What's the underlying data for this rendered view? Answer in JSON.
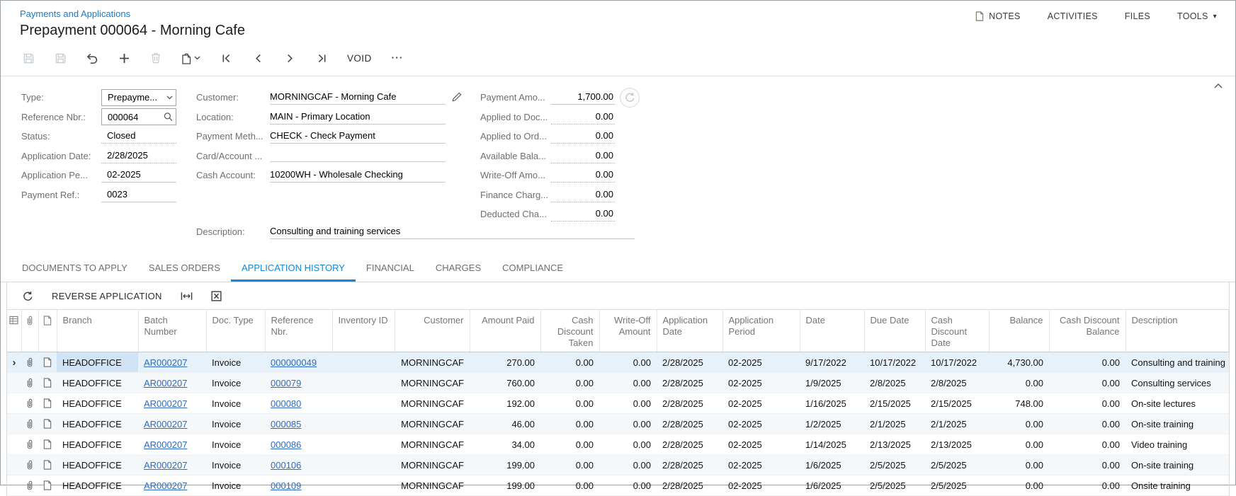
{
  "colors": {
    "accent": "#1487d8",
    "link": "#2d6bc2",
    "breadcrumb": "#1b7ac9",
    "selected_row": "#e7f1fa",
    "selected_cell": "#d0e4f5",
    "stripe": "#f5f8fb"
  },
  "header": {
    "breadcrumb": "Payments and Applications",
    "title": "Prepayment 000064 - Morning Cafe"
  },
  "top_menu": {
    "items": [
      {
        "name": "notes",
        "label": "NOTES",
        "icon": "note"
      },
      {
        "name": "activities",
        "label": "ACTIVITIES"
      },
      {
        "name": "files",
        "label": "FILES"
      },
      {
        "name": "tools",
        "label": "TOOLS",
        "caret": "▾"
      }
    ]
  },
  "toolbar": {
    "buttons": [
      {
        "name": "save-close-button",
        "icon": "floppy",
        "disabled": true
      },
      {
        "name": "save-button",
        "icon": "floppy",
        "disabled": true
      },
      {
        "name": "undo-button",
        "icon": "undo"
      },
      {
        "name": "add-button",
        "icon": "plus"
      },
      {
        "name": "delete-button",
        "icon": "trash",
        "disabled": true
      },
      {
        "name": "copy-paste-button",
        "icon": "copy",
        "caret": true
      },
      {
        "name": "go-first-button",
        "icon": "navfirst"
      },
      {
        "name": "go-previous-button",
        "icon": "navprev"
      },
      {
        "name": "go-next-button",
        "icon": "navnext"
      },
      {
        "name": "go-last-button",
        "icon": "navlast"
      },
      {
        "name": "void-button",
        "label": "VOID"
      },
      {
        "name": "more-actions-button",
        "label": "⋯",
        "more": true
      }
    ]
  },
  "form": {
    "left": [
      {
        "label": "Type:",
        "value": "Prepayme...",
        "control": "combo"
      },
      {
        "label": "Reference Nbr.:",
        "value": "000064",
        "control": "lookup"
      },
      {
        "label": "Status:",
        "value": "Closed",
        "control": "readonly"
      },
      {
        "label": "Application Date:",
        "value": "2/28/2025",
        "control": "readonly"
      },
      {
        "label": "Application Pe...",
        "value": "02-2025",
        "control": "text"
      },
      {
        "label": "Payment Ref.:",
        "value": "0023",
        "control": "text"
      }
    ],
    "middle": [
      {
        "label": "Customer:",
        "value": "MORNINGCAF - Morning Cafe",
        "edit_icon": true
      },
      {
        "label": "Location:",
        "value": "MAIN - Primary Location"
      },
      {
        "label": "Payment Meth...",
        "value": "CHECK - Check Payment"
      },
      {
        "label": "Card/Account ...",
        "value": ""
      },
      {
        "label": "Cash Account:",
        "value": "10200WH - Wholesale Checking"
      }
    ],
    "right": [
      {
        "label": "Payment Amo...",
        "value": "1,700.00",
        "refresh_icon": true,
        "solid": true
      },
      {
        "label": "Applied to Doc...",
        "value": "0.00"
      },
      {
        "label": "Applied to Ord...",
        "value": "0.00"
      },
      {
        "label": "Available Bala...",
        "value": "0.00"
      },
      {
        "label": "Write-Off Amo...",
        "value": "0.00"
      },
      {
        "label": "Finance Charg...",
        "value": "0.00"
      },
      {
        "label": "Deducted Cha...",
        "value": "0.00"
      }
    ],
    "description": {
      "label": "Description:",
      "value": "Consulting and training services"
    }
  },
  "tabs": {
    "active_index": 2,
    "items": [
      "DOCUMENTS TO APPLY",
      "SALES ORDERS",
      "APPLICATION HISTORY",
      "FINANCIAL",
      "CHARGES",
      "COMPLIANCE"
    ]
  },
  "grid_toolbar": {
    "buttons": [
      {
        "name": "grid-refresh-button",
        "icon": "refresh"
      },
      {
        "name": "reverse-application-button",
        "label": "REVERSE APPLICATION"
      },
      {
        "name": "fit-width-button",
        "icon": "fit"
      },
      {
        "name": "export-excel-button",
        "icon": "excel"
      }
    ]
  },
  "table": {
    "selected_row_index": 0,
    "selected_row_marker": "›",
    "columns": [
      {
        "key": "selector",
        "icon": "gridset"
      },
      {
        "key": "attachment",
        "icon": "clip"
      },
      {
        "key": "note",
        "icon": "note"
      },
      {
        "key": "branch",
        "label": "Branch"
      },
      {
        "key": "batch_number",
        "label": "Batch Number",
        "link": true
      },
      {
        "key": "doc_type",
        "label": "Doc. Type"
      },
      {
        "key": "reference_nbr",
        "label": "Reference Nbr.",
        "link": true
      },
      {
        "key": "inventory_id",
        "label": "Inventory ID"
      },
      {
        "key": "customer",
        "label": "Customer",
        "align": "right"
      },
      {
        "key": "amount_paid",
        "label": "Amount Paid",
        "align": "right"
      },
      {
        "key": "cash_discount_taken",
        "label": "Cash Discount Taken",
        "align": "right"
      },
      {
        "key": "write_off_amount",
        "label": "Write-Off Amount",
        "align": "right"
      },
      {
        "key": "application_date",
        "label": "Application Date"
      },
      {
        "key": "application_period",
        "label": "Application Period"
      },
      {
        "key": "date",
        "label": "Date"
      },
      {
        "key": "due_date",
        "label": "Due Date"
      },
      {
        "key": "cash_discount_date",
        "label": "Cash Discount Date"
      },
      {
        "key": "balance",
        "label": "Balance",
        "align": "right"
      },
      {
        "key": "cash_discount_balance",
        "label": "Cash Discount Balance",
        "align": "right"
      },
      {
        "key": "description",
        "label": "Description"
      }
    ],
    "rows": [
      {
        "branch": "HEADOFFICE",
        "batch_number": "AR000207",
        "doc_type": "Invoice",
        "reference_nbr": "000000049",
        "inventory_id": "",
        "customer": "MORNINGCAF",
        "amount_paid": "270.00",
        "cash_discount_taken": "0.00",
        "write_off_amount": "0.00",
        "application_date": "2/28/2025",
        "application_period": "02-2025",
        "date": "9/17/2022",
        "due_date": "10/17/2022",
        "cash_discount_date": "10/17/2022",
        "balance": "4,730.00",
        "cash_discount_balance": "0.00",
        "description": "Consulting and training"
      },
      {
        "branch": "HEADOFFICE",
        "batch_number": "AR000207",
        "doc_type": "Invoice",
        "reference_nbr": "000079",
        "inventory_id": "",
        "customer": "MORNINGCAF",
        "amount_paid": "760.00",
        "cash_discount_taken": "0.00",
        "write_off_amount": "0.00",
        "application_date": "2/28/2025",
        "application_period": "02-2025",
        "date": "1/9/2025",
        "due_date": "2/8/2025",
        "cash_discount_date": "2/8/2025",
        "balance": "0.00",
        "cash_discount_balance": "0.00",
        "description": "Consulting services"
      },
      {
        "branch": "HEADOFFICE",
        "batch_number": "AR000207",
        "doc_type": "Invoice",
        "reference_nbr": "000080",
        "inventory_id": "",
        "customer": "MORNINGCAF",
        "amount_paid": "192.00",
        "cash_discount_taken": "0.00",
        "write_off_amount": "0.00",
        "application_date": "2/28/2025",
        "application_period": "02-2025",
        "date": "1/16/2025",
        "due_date": "2/15/2025",
        "cash_discount_date": "2/15/2025",
        "balance": "748.00",
        "cash_discount_balance": "0.00",
        "description": "On-site lectures"
      },
      {
        "branch": "HEADOFFICE",
        "batch_number": "AR000207",
        "doc_type": "Invoice",
        "reference_nbr": "000085",
        "inventory_id": "",
        "customer": "MORNINGCAF",
        "amount_paid": "46.00",
        "cash_discount_taken": "0.00",
        "write_off_amount": "0.00",
        "application_date": "2/28/2025",
        "application_period": "02-2025",
        "date": "1/2/2025",
        "due_date": "2/1/2025",
        "cash_discount_date": "2/1/2025",
        "balance": "0.00",
        "cash_discount_balance": "0.00",
        "description": "On-site training"
      },
      {
        "branch": "HEADOFFICE",
        "batch_number": "AR000207",
        "doc_type": "Invoice",
        "reference_nbr": "000086",
        "inventory_id": "",
        "customer": "MORNINGCAF",
        "amount_paid": "34.00",
        "cash_discount_taken": "0.00",
        "write_off_amount": "0.00",
        "application_date": "2/28/2025",
        "application_period": "02-2025",
        "date": "1/14/2025",
        "due_date": "2/13/2025",
        "cash_discount_date": "2/13/2025",
        "balance": "0.00",
        "cash_discount_balance": "0.00",
        "description": "Video training"
      },
      {
        "branch": "HEADOFFICE",
        "batch_number": "AR000207",
        "doc_type": "Invoice",
        "reference_nbr": "000106",
        "inventory_id": "",
        "customer": "MORNINGCAF",
        "amount_paid": "199.00",
        "cash_discount_taken": "0.00",
        "write_off_amount": "0.00",
        "application_date": "2/28/2025",
        "application_period": "02-2025",
        "date": "1/6/2025",
        "due_date": "2/5/2025",
        "cash_discount_date": "2/5/2025",
        "balance": "0.00",
        "cash_discount_balance": "0.00",
        "description": "On-site training"
      },
      {
        "branch": "HEADOFFICE",
        "batch_number": "AR000207",
        "doc_type": "Invoice",
        "reference_nbr": "000109",
        "inventory_id": "",
        "customer": "MORNINGCAF",
        "amount_paid": "199.00",
        "cash_discount_taken": "0.00",
        "write_off_amount": "0.00",
        "application_date": "2/28/2025",
        "application_period": "02-2025",
        "date": "1/6/2025",
        "due_date": "2/5/2025",
        "cash_discount_date": "2/5/2025",
        "balance": "0.00",
        "cash_discount_balance": "0.00",
        "description": "Onsite training"
      }
    ]
  }
}
